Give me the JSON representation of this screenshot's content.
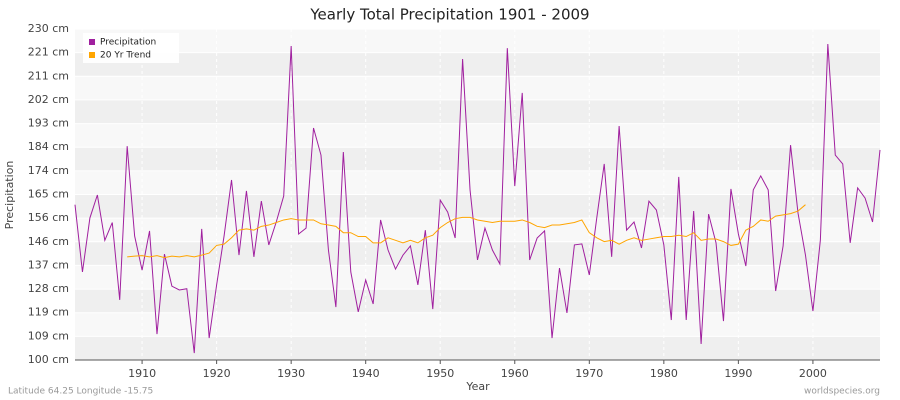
{
  "chart_data": {
    "type": "line",
    "title": "Yearly Total Precipitation 1901 - 2009",
    "x_label": "Year",
    "y_label": "Precipitation",
    "footer_left": "Latitude 64.25 Longitude -15.75",
    "footer_right": "worldspecies.org",
    "legend": "upper left",
    "grid": true,
    "x": [
      1901,
      1902,
      1903,
      1904,
      1905,
      1906,
      1907,
      1908,
      1909,
      1910,
      1911,
      1912,
      1913,
      1914,
      1915,
      1916,
      1917,
      1918,
      1919,
      1920,
      1921,
      1922,
      1923,
      1924,
      1925,
      1926,
      1927,
      1928,
      1929,
      1930,
      1931,
      1932,
      1933,
      1934,
      1935,
      1936,
      1937,
      1938,
      1939,
      1940,
      1941,
      1942,
      1943,
      1944,
      1945,
      1946,
      1947,
      1948,
      1949,
      1950,
      1951,
      1952,
      1953,
      1954,
      1955,
      1956,
      1957,
      1958,
      1959,
      1960,
      1961,
      1962,
      1963,
      1964,
      1965,
      1966,
      1967,
      1968,
      1969,
      1970,
      1971,
      1972,
      1973,
      1974,
      1975,
      1976,
      1977,
      1978,
      1979,
      1980,
      1981,
      1982,
      1983,
      1984,
      1985,
      1986,
      1987,
      1988,
      1989,
      1990,
      1991,
      1992,
      1993,
      1994,
      1995,
      1996,
      1997,
      1998,
      1999,
      2000,
      2001,
      2002,
      2003,
      2004,
      2005,
      2006,
      2007,
      2008,
      2009
    ],
    "series": [
      {
        "name": "Precipitation",
        "color": "#a0209f",
        "values": [
          161,
          134.6,
          155.8,
          164.8,
          147,
          154,
          123.6,
          184,
          148.7,
          135.3,
          150.7,
          110.2,
          141.6,
          129,
          127.5,
          128,
          102.7,
          151.5,
          108.6,
          129.5,
          148.7,
          170.7,
          141.2,
          166.4,
          140.5,
          162.4,
          145.2,
          154.2,
          164.4,
          223.3,
          149.5,
          151.8,
          191.1,
          180.5,
          143.2,
          120.8,
          181.7,
          134.6,
          118.9,
          131.4,
          122,
          155,
          143.2,
          135.7,
          141.2,
          144.8,
          129.5,
          151,
          120,
          162.8,
          158.1,
          147.9,
          218.2,
          166.8,
          139.3,
          151.8,
          143.2,
          137.7,
          222.5,
          168.3,
          204.9,
          139.3,
          147.9,
          150.7,
          108.6,
          136.1,
          118.5,
          145.2,
          145.6,
          133.4,
          155.8,
          177,
          140.5,
          191.9,
          151,
          154.2,
          144,
          162.4,
          158.9,
          145.2,
          115.7,
          171.9,
          115.7,
          158.5,
          106.3,
          157.3,
          146,
          115.3,
          167.2,
          149.5,
          136.9,
          166.8,
          172.3,
          166.8,
          127.1,
          144.8,
          184.4,
          157.7,
          141.2,
          119.2,
          147.1,
          224.1,
          180.5,
          177,
          146,
          167.6,
          163.6,
          154.2,
          182.5
        ]
      },
      {
        "name": "20 Yr Trend",
        "color": "#ffa500",
        "values": [
          null,
          null,
          null,
          null,
          null,
          null,
          null,
          140.5,
          140.8,
          141,
          140.5,
          141,
          140.2,
          140.8,
          140.5,
          141,
          140.5,
          141.2,
          142,
          145,
          145.5,
          148,
          151,
          151.5,
          151,
          152.5,
          153,
          154,
          155,
          155.5,
          155,
          155,
          155,
          153.5,
          153,
          152.5,
          150,
          150,
          148.5,
          148.5,
          146,
          146,
          148,
          147,
          146,
          147,
          146,
          148,
          149,
          152,
          154,
          155.5,
          156,
          156,
          155,
          154.5,
          154,
          154.5,
          154.5,
          154.5,
          155,
          154,
          152.5,
          152,
          153,
          153,
          153.5,
          154,
          155,
          150,
          148,
          146.5,
          147,
          145.5,
          147,
          148,
          147,
          147.5,
          148,
          148.5,
          148.5,
          149,
          148.5,
          150,
          147,
          147.5,
          147.5,
          146.5,
          145,
          145.5,
          151,
          152.5,
          155,
          154.5,
          156.5,
          157,
          157.5,
          158.5,
          161,
          null,
          null,
          null,
          null,
          null,
          null,
          null,
          null,
          null,
          null
        ]
      }
    ],
    "xlim": [
      1901,
      2009
    ],
    "xticks": [
      1910,
      1920,
      1930,
      1940,
      1950,
      1960,
      1970,
      1980,
      1990,
      2000
    ],
    "ylim": [
      100,
      230
    ],
    "yticks": [
      {
        "value": 100,
        "label": "100 cm"
      },
      {
        "value": 109.29,
        "label": "109 cm"
      },
      {
        "value": 118.57,
        "label": "119 cm"
      },
      {
        "value": 127.86,
        "label": "128 cm"
      },
      {
        "value": 137.14,
        "label": "137 cm"
      },
      {
        "value": 146.43,
        "label": "146 cm"
      },
      {
        "value": 155.71,
        "label": "156 cm"
      },
      {
        "value": 165,
        "label": "165 cm"
      },
      {
        "value": 174.29,
        "label": "174 cm"
      },
      {
        "value": 183.57,
        "label": "184 cm"
      },
      {
        "value": 192.86,
        "label": "193 cm"
      },
      {
        "value": 202.14,
        "label": "202 cm"
      },
      {
        "value": 211.43,
        "label": "211 cm"
      },
      {
        "value": 220.71,
        "label": "221 cm"
      },
      {
        "value": 230,
        "label": "230 cm"
      }
    ]
  }
}
